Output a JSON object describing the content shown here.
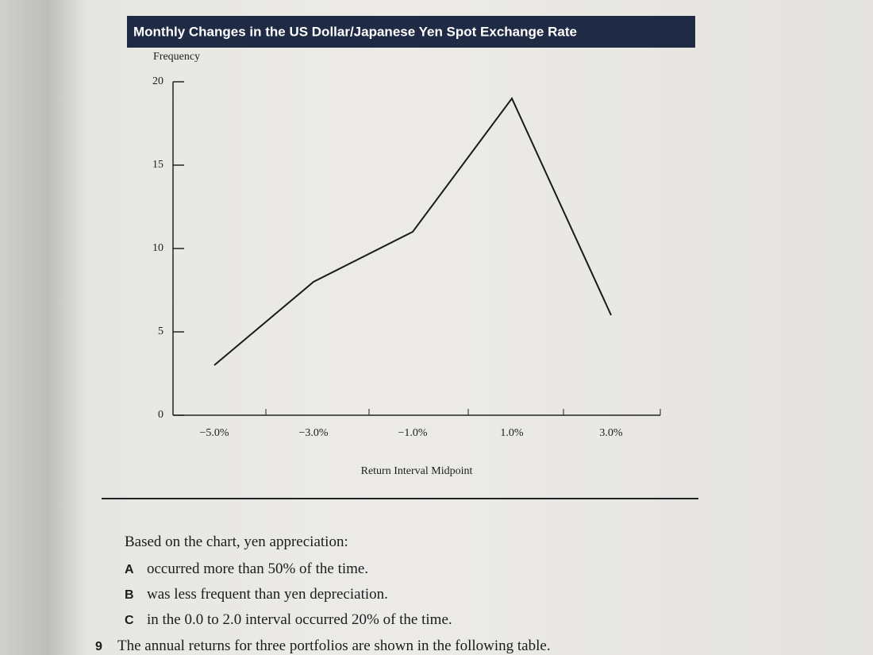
{
  "chart_data": {
    "type": "line",
    "title": "Monthly Changes in the US Dollar/Japanese Yen Spot Exchange Rate",
    "y_label": "Frequency",
    "x_label": "Return Interval Midpoint",
    "categories": [
      "−5.0%",
      "−3.0%",
      "−1.0%",
      "1.0%",
      "3.0%"
    ],
    "values": [
      3,
      8,
      11,
      19,
      6
    ],
    "color": "#1a1a1a",
    "ylim": [
      0,
      20
    ],
    "yticks": [
      0,
      5,
      10,
      15,
      20
    ]
  },
  "question": {
    "stem": "Based on the chart, yen appreciation:",
    "options": [
      {
        "letter": "A",
        "text": "occurred more than 50% of the time."
      },
      {
        "letter": "B",
        "text": "was less frequent than yen depreciation."
      },
      {
        "letter": "C",
        "text": "in the 0.0 to 2.0 interval occurred 20% of the time."
      }
    ]
  },
  "next_question": {
    "number": "9",
    "text": "The annual returns for three portfolios are shown in the following table."
  }
}
